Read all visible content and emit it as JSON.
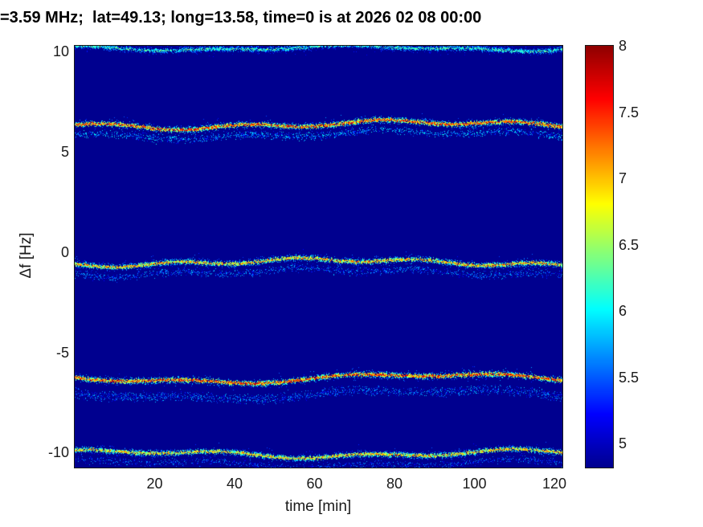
{
  "figure": {
    "background_color": "#ffffff",
    "axis_color": "#1a1a1a"
  },
  "chart_data": {
    "type": "heatmap",
    "title": "=3.59 MHz;  lat=49.13; long=13.58, time=0 is at 2026 02 08 00:00",
    "xlabel": "time [min]",
    "ylabel": "Δf [Hz]",
    "xlim": [
      0,
      122
    ],
    "ylim": [
      -10.75,
      10.3
    ],
    "xticks": [
      20,
      40,
      60,
      80,
      100,
      120
    ],
    "yticks": [
      10,
      5,
      0,
      -5,
      -10
    ],
    "grid": false,
    "colormap": "jet",
    "colorbar": {
      "vmin": 4.82,
      "vmax": 8,
      "ticks": [
        5,
        5.5,
        6,
        6.5,
        7,
        7.5,
        8
      ],
      "position": "right"
    },
    "background_value": 4.82,
    "bands": [
      {
        "center_hz": 10.2,
        "amp1": 0.1,
        "per1": 80,
        "ph1": 30,
        "amp2": 0.06,
        "per2": 32,
        "ph2": 5,
        "peak": 6.6,
        "density": 0.75,
        "echo": null
      },
      {
        "center_hz": 6.38,
        "amp1": 0.15,
        "per1": 115,
        "ph1": 58,
        "amp2": 0.11,
        "per2": 34,
        "ph2": 0,
        "peak": 7.9,
        "density": 0.95,
        "echo": {
          "offset": -0.5,
          "density": 0.35,
          "peak": 6.1,
          "sigma": 2.6
        }
      },
      {
        "center_hz": -0.5,
        "amp1": 0.14,
        "per1": 120,
        "ph1": 85,
        "amp2": 0.1,
        "per2": 30,
        "ph2": 12,
        "peak": 7.5,
        "density": 0.9,
        "echo": {
          "offset": -0.5,
          "density": 0.3,
          "peak": 5.9,
          "sigma": 2.6
        }
      },
      {
        "center_hz": -6.28,
        "amp1": 0.2,
        "per1": 110,
        "ph1": 48,
        "amp2": 0.1,
        "per2": 40,
        "ph2": 22,
        "peak": 7.95,
        "density": 0.95,
        "echo": {
          "offset": -0.8,
          "density": 0.3,
          "peak": 5.9,
          "sigma": 3.4
        }
      },
      {
        "center_hz": -10.05,
        "amp1": 0.14,
        "per1": 100,
        "ph1": 12,
        "amp2": 0.1,
        "per2": 36,
        "ph2": 8,
        "peak": 7.4,
        "density": 0.9,
        "echo": {
          "offset": -0.5,
          "density": 0.25,
          "peak": 5.8,
          "sigma": 2.5
        }
      }
    ]
  }
}
